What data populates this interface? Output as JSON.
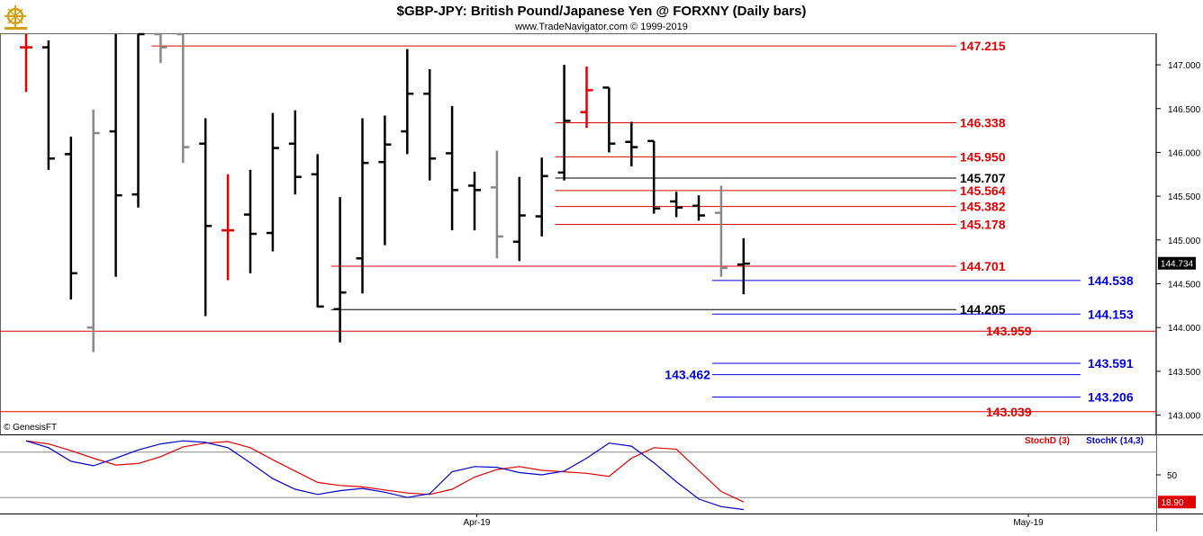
{
  "header": {
    "title": "$GBP-JPY:  British Pound/Japanese Yen @ FORXNY  (Daily bars)",
    "subtitle": "www.TradeNavigator.com © 1999-2019",
    "logo_icon": "ship-wheel-icon",
    "watermark": "© GenesisFT"
  },
  "colors": {
    "up_bar": "#000000",
    "down_bar": "#888888",
    "highlight_bar": "#e00000",
    "red_level": "#e00000",
    "blue_level": "#0000dd",
    "black_level": "#000000",
    "stoch_d": "#e00000",
    "stoch_k": "#0000cc"
  },
  "chart_data": [
    {
      "type": "ohlc",
      "title": "$GBP-JPY:  British Pound/Japanese Yen @ FORXNY  (Daily bars)",
      "ylim": [
        142.78,
        147.35
      ],
      "y_ticks": [
        "147.000",
        "146.500",
        "146.000",
        "145.500",
        "145.000",
        "144.500",
        "144.000",
        "143.500",
        "143.000"
      ],
      "x_ticks": [
        "Apr-19",
        "May-19"
      ],
      "last_price": "144.734",
      "bars": [
        {
          "i": 0,
          "o": 147.2,
          "h": 147.35,
          "l": 146.69,
          "c": 147.2,
          "color": "red"
        },
        {
          "i": 1,
          "o": 147.2,
          "h": 147.28,
          "l": 145.8,
          "c": 145.93,
          "color": "black"
        },
        {
          "i": 2,
          "o": 145.98,
          "h": 146.18,
          "l": 144.32,
          "c": 144.62,
          "color": "black"
        },
        {
          "i": 3,
          "o": 144.0,
          "h": 146.49,
          "l": 143.72,
          "c": 146.22,
          "color": "gray"
        },
        {
          "i": 4,
          "o": 146.24,
          "h": 147.35,
          "l": 144.58,
          "c": 145.51,
          "color": "black"
        },
        {
          "i": 5,
          "o": 145.52,
          "h": 147.35,
          "l": 145.37,
          "c": 147.35,
          "color": "black"
        },
        {
          "i": 6,
          "o": 147.35,
          "h": 147.35,
          "l": 147.02,
          "c": 147.2,
          "color": "gray"
        },
        {
          "i": 7,
          "o": 147.35,
          "h": 147.35,
          "l": 145.88,
          "c": 146.06,
          "color": "gray"
        },
        {
          "i": 8,
          "o": 146.1,
          "h": 146.39,
          "l": 144.13,
          "c": 145.16,
          "color": "black"
        },
        {
          "i": 9,
          "o": 145.11,
          "h": 145.75,
          "l": 144.54,
          "c": 145.11,
          "color": "red"
        },
        {
          "i": 10,
          "o": 145.29,
          "h": 145.8,
          "l": 144.62,
          "c": 145.07,
          "color": "black"
        },
        {
          "i": 11,
          "o": 145.08,
          "h": 146.45,
          "l": 144.87,
          "c": 146.05,
          "color": "black"
        },
        {
          "i": 12,
          "o": 146.1,
          "h": 146.48,
          "l": 145.52,
          "c": 145.72,
          "color": "black"
        },
        {
          "i": 13,
          "o": 145.75,
          "h": 145.98,
          "l": 144.23,
          "c": 144.24,
          "color": "black"
        },
        {
          "i": 14,
          "o": 144.21,
          "h": 145.49,
          "l": 143.83,
          "c": 144.4,
          "color": "black"
        },
        {
          "i": 15,
          "o": 144.79,
          "h": 146.39,
          "l": 144.39,
          "c": 145.88,
          "color": "black"
        },
        {
          "i": 16,
          "o": 145.89,
          "h": 146.42,
          "l": 144.94,
          "c": 146.09,
          "color": "black"
        },
        {
          "i": 17,
          "o": 146.24,
          "h": 147.18,
          "l": 145.98,
          "c": 146.67,
          "color": "black"
        },
        {
          "i": 18,
          "o": 146.67,
          "h": 146.95,
          "l": 145.68,
          "c": 145.93,
          "color": "black"
        },
        {
          "i": 19,
          "o": 145.99,
          "h": 146.53,
          "l": 145.11,
          "c": 145.57,
          "color": "black"
        },
        {
          "i": 20,
          "o": 145.62,
          "h": 145.78,
          "l": 145.11,
          "c": 145.57,
          "color": "black"
        },
        {
          "i": 21,
          "o": 145.6,
          "h": 146.02,
          "l": 144.79,
          "c": 145.04,
          "color": "gray"
        },
        {
          "i": 22,
          "o": 144.98,
          "h": 145.72,
          "l": 144.76,
          "c": 145.28,
          "color": "black"
        },
        {
          "i": 23,
          "o": 145.27,
          "h": 145.94,
          "l": 145.04,
          "c": 145.73,
          "color": "black"
        },
        {
          "i": 24,
          "o": 145.77,
          "h": 147.0,
          "l": 145.68,
          "c": 146.36,
          "color": "black"
        },
        {
          "i": 25,
          "o": 146.46,
          "h": 146.98,
          "l": 146.28,
          "c": 146.71,
          "color": "red"
        },
        {
          "i": 26,
          "o": 146.74,
          "h": 146.74,
          "l": 146.0,
          "c": 146.1,
          "color": "black"
        },
        {
          "i": 27,
          "o": 146.12,
          "h": 146.35,
          "l": 145.84,
          "c": 146.06,
          "color": "black"
        },
        {
          "i": 28,
          "o": 146.13,
          "h": 146.13,
          "l": 145.3,
          "c": 145.36,
          "color": "black"
        },
        {
          "i": 29,
          "o": 145.44,
          "h": 145.55,
          "l": 145.26,
          "c": 145.37,
          "color": "black"
        },
        {
          "i": 30,
          "o": 145.39,
          "h": 145.51,
          "l": 145.22,
          "c": 145.28,
          "color": "black"
        },
        {
          "i": 31,
          "o": 145.31,
          "h": 145.62,
          "l": 144.58,
          "c": 144.68,
          "color": "gray"
        },
        {
          "i": 32,
          "o": 144.72,
          "h": 145.02,
          "l": 144.38,
          "c": 144.73,
          "color": "black"
        }
      ],
      "levels": [
        {
          "value": 147.215,
          "label": "147.215",
          "color": "red",
          "extent": "from-bar-6"
        },
        {
          "value": 146.338,
          "label": "146.338",
          "color": "red",
          "extent": "from-bar-24"
        },
        {
          "value": 145.95,
          "label": "145.950",
          "color": "red",
          "extent": "from-bar-24"
        },
        {
          "value": 145.707,
          "label": "145.707",
          "color": "black",
          "extent": "from-bar-24"
        },
        {
          "value": 145.564,
          "label": "145.564",
          "color": "red",
          "extent": "from-bar-24"
        },
        {
          "value": 145.382,
          "label": "145.382",
          "color": "red",
          "extent": "from-bar-24"
        },
        {
          "value": 145.178,
          "label": "145.178",
          "color": "red",
          "extent": "from-bar-24"
        },
        {
          "value": 144.701,
          "label": "144.701",
          "color": "red",
          "extent": "from-bar-14"
        },
        {
          "value": 144.538,
          "label": "144.538",
          "color": "blue",
          "extent": "from-bar-31"
        },
        {
          "value": 144.205,
          "label": "144.205",
          "color": "black",
          "extent": "from-bar-14"
        },
        {
          "value": 144.153,
          "label": "144.153",
          "color": "blue",
          "extent": "from-bar-31"
        },
        {
          "value": 143.959,
          "label": "143.959",
          "color": "red",
          "extent": "full"
        },
        {
          "value": 143.591,
          "label": "143.591",
          "color": "blue",
          "extent": "from-bar-31"
        },
        {
          "value": 143.462,
          "label": "143.462",
          "color": "blue",
          "extent": "from-bar-31-left-label"
        },
        {
          "value": 143.206,
          "label": "143.206",
          "color": "blue",
          "extent": "from-bar-31"
        },
        {
          "value": 143.039,
          "label": "143.039",
          "color": "red",
          "extent": "full"
        }
      ]
    },
    {
      "type": "line",
      "ylim": [
        0,
        100
      ],
      "y_ticks": [
        "50"
      ],
      "reference_lines": [
        80,
        20
      ],
      "last_value": "18.90",
      "series": [
        {
          "name": "StochD (3)",
          "color": "red",
          "values": [
            95,
            91,
            82,
            72,
            63,
            65,
            74,
            87,
            92,
            94,
            86,
            70,
            55,
            40,
            36,
            34,
            30,
            26,
            24,
            31,
            47,
            57,
            61,
            56,
            54,
            52,
            48,
            72,
            86,
            84,
            56,
            28,
            14
          ]
        },
        {
          "name": "StochK (14,3)",
          "color": "blue",
          "values": [
            95,
            86,
            68,
            62,
            72,
            83,
            91,
            95,
            93,
            86,
            66,
            45,
            31,
            24,
            29,
            32,
            27,
            20,
            25,
            54,
            61,
            60,
            53,
            50,
            55,
            72,
            92,
            88,
            66,
            41,
            18,
            8,
            4
          ]
        }
      ]
    }
  ]
}
